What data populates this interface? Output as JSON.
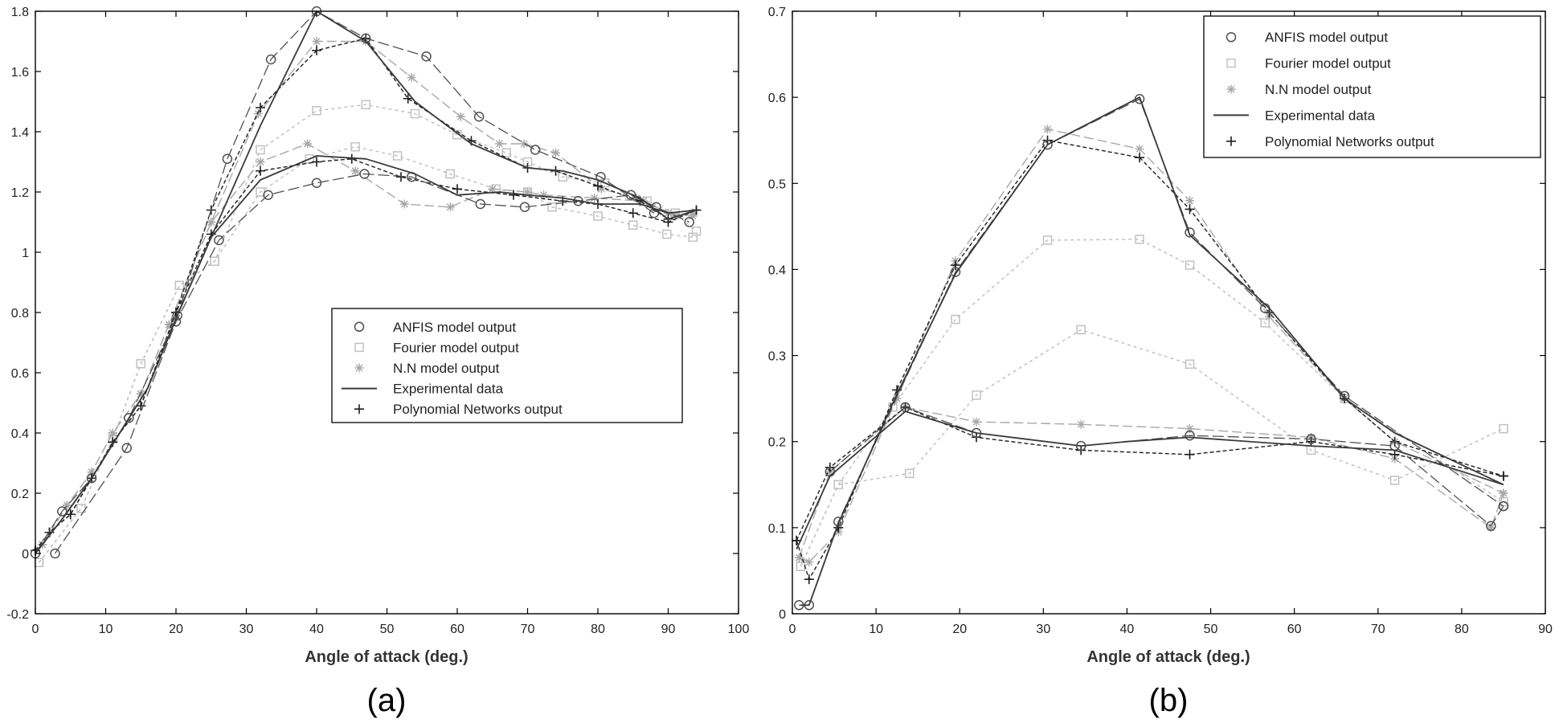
{
  "colors": {
    "experimental": "#3a3a3a",
    "polynomial": "#1e1e1e",
    "anfis": "#505050",
    "fourier": "#c2c2c2",
    "nn": "#a8a8a8",
    "axis": "#000000"
  },
  "chart_data": [
    {
      "type": "line",
      "panel_label": "(a)",
      "xlabel": "Angle of attack (deg.)",
      "ylabel": "",
      "xlim": [
        0,
        100
      ],
      "ylim": [
        -0.2,
        1.8
      ],
      "xticks": [
        0,
        10,
        20,
        30,
        40,
        50,
        60,
        70,
        80,
        90,
        100
      ],
      "yticks": [
        -0.2,
        0,
        0.2,
        0.4,
        0.6,
        0.8,
        1,
        1.2,
        1.4,
        1.6,
        1.8
      ],
      "ytick_labels": [
        "-0.2",
        "0",
        "0.2",
        "0.4",
        "0.6",
        "0.8",
        "1",
        "1.2",
        "1.4",
        "1.6",
        "1.8"
      ],
      "legend": {
        "position": "center-right",
        "entries": [
          "ANFIS model output",
          "Fourier model output",
          "N.N model output",
          "Experimental data",
          "Polynomial Networks output"
        ]
      },
      "series": [
        {
          "name": "Experimental data (upper)",
          "kind": "experimental",
          "x": [
            0,
            4,
            8,
            12,
            16,
            20,
            25,
            32,
            40,
            47,
            54,
            62,
            70,
            75,
            80,
            86,
            90,
            94
          ],
          "y": [
            0,
            0.12,
            0.25,
            0.4,
            0.55,
            0.78,
            1.05,
            1.42,
            1.8,
            1.7,
            1.5,
            1.36,
            1.28,
            1.27,
            1.24,
            1.18,
            1.11,
            1.14
          ]
        },
        {
          "name": "Experimental data (lower)",
          "kind": "experimental",
          "x": [
            0,
            4,
            8,
            12,
            16,
            20,
            25,
            32,
            40,
            47,
            54,
            60,
            66,
            70,
            75,
            80,
            86,
            90,
            94
          ],
          "y": [
            0,
            0.12,
            0.25,
            0.4,
            0.55,
            0.78,
            1.05,
            1.24,
            1.32,
            1.31,
            1.26,
            1.19,
            1.2,
            1.19,
            1.18,
            1.16,
            1.16,
            1.13,
            1.14
          ]
        },
        {
          "name": "Polynomial Networks output (upper)",
          "kind": "polynomial",
          "x": [
            0,
            2,
            5,
            8,
            11,
            15,
            20,
            25,
            32,
            40,
            47,
            53,
            62,
            70,
            74,
            80,
            86,
            90,
            94
          ],
          "y": [
            0.01,
            0.07,
            0.13,
            0.25,
            0.37,
            0.49,
            0.8,
            1.14,
            1.48,
            1.67,
            1.71,
            1.51,
            1.37,
            1.28,
            1.27,
            1.22,
            1.17,
            1.11,
            1.14
          ]
        },
        {
          "name": "Polynomial Networks output (lower)",
          "kind": "polynomial",
          "x": [
            0,
            2,
            5,
            8,
            11,
            15,
            20,
            25,
            32,
            40,
            45,
            52,
            60,
            68,
            75,
            80,
            85,
            90,
            94
          ],
          "y": [
            0.01,
            0.07,
            0.13,
            0.25,
            0.37,
            0.49,
            0.8,
            1.06,
            1.27,
            1.3,
            1.31,
            1.25,
            1.21,
            1.19,
            1.17,
            1.16,
            1.13,
            1.1,
            1.14
          ]
        },
        {
          "name": "ANFIS model output (upper)",
          "kind": "anfis",
          "x": [
            0,
            3.8,
            8,
            13.3,
            20.2,
            27.3,
            33.5,
            40,
            47,
            55.6,
            63.1,
            71.1,
            80.4,
            88
          ],
          "y": [
            0,
            0.14,
            0.25,
            0.45,
            0.79,
            1.31,
            1.64,
            1.8,
            1.71,
            1.65,
            1.45,
            1.34,
            1.25,
            1.13
          ]
        },
        {
          "name": "ANFIS model output (lower)",
          "kind": "anfis",
          "x": [
            2.8,
            13,
            20,
            26.1,
            33.1,
            40,
            46.8,
            53.5,
            63.3,
            69.6,
            77.2,
            84.7,
            88.3,
            93
          ],
          "y": [
            0,
            0.35,
            0.77,
            1.04,
            1.19,
            1.23,
            1.26,
            1.25,
            1.16,
            1.15,
            1.17,
            1.19,
            1.15,
            1.1
          ]
        },
        {
          "name": "Fourier model output (upper)",
          "kind": "fourier",
          "x": [
            0.5,
            6.5,
            11,
            15,
            20.5,
            25.5,
            32,
            40,
            47,
            54,
            60,
            67,
            70,
            75,
            81,
            87,
            91,
            94
          ],
          "y": [
            -0.03,
            0.15,
            0.38,
            0.63,
            0.89,
            0.97,
            1.34,
            1.47,
            1.49,
            1.46,
            1.39,
            1.33,
            1.3,
            1.25,
            1.23,
            1.17,
            1.13,
            1.07
          ]
        },
        {
          "name": "Fourier model output (lower)",
          "kind": "fourier",
          "x": [
            0.5,
            6.5,
            11,
            15,
            20.5,
            25.5,
            32,
            39,
            45.5,
            51.5,
            59,
            65.5,
            70,
            73.5,
            80,
            85,
            89.8,
            93.5
          ],
          "y": [
            -0.03,
            0.15,
            0.38,
            0.63,
            0.89,
            0.97,
            1.2,
            1.31,
            1.35,
            1.32,
            1.26,
            1.21,
            1.2,
            1.15,
            1.12,
            1.09,
            1.06,
            1.05
          ]
        },
        {
          "name": "N.N model output (upper)",
          "kind": "nn",
          "x": [
            1,
            4.5,
            8,
            11,
            15,
            19,
            25,
            31.7,
            40,
            47,
            53.5,
            60.5,
            66,
            69.5,
            74,
            80.5,
            85.5,
            90,
            93.5
          ],
          "y": [
            0.03,
            0.16,
            0.27,
            0.4,
            0.53,
            0.76,
            1.1,
            1.46,
            1.7,
            1.7,
            1.58,
            1.45,
            1.36,
            1.36,
            1.33,
            1.21,
            1.18,
            1.13,
            1.12
          ]
        },
        {
          "name": "N.N model output (lower)",
          "kind": "nn",
          "x": [
            1,
            4.5,
            8,
            11,
            15,
            19,
            25,
            32,
            38.7,
            45.5,
            52.5,
            59,
            65,
            70,
            72.3,
            79.5,
            86.5,
            91,
            93.5
          ],
          "y": [
            0.03,
            0.16,
            0.27,
            0.4,
            0.53,
            0.76,
            1.1,
            1.3,
            1.36,
            1.27,
            1.16,
            1.15,
            1.21,
            1.2,
            1.19,
            1.18,
            1.17,
            1.12,
            1.13
          ]
        }
      ]
    },
    {
      "type": "line",
      "panel_label": "(b)",
      "xlabel": "Angle of attack (deg.)",
      "ylabel": "",
      "xlim": [
        0,
        90
      ],
      "ylim": [
        0,
        0.7
      ],
      "xticks": [
        0,
        10,
        20,
        30,
        40,
        50,
        60,
        70,
        80,
        90
      ],
      "yticks": [
        0,
        0.1,
        0.2,
        0.3,
        0.4,
        0.5,
        0.6,
        0.7
      ],
      "ytick_labels": [
        "0",
        "0.1",
        "0.2",
        "0.3",
        "0.4",
        "0.5",
        "0.6",
        "0.7"
      ],
      "legend": {
        "position": "top-right",
        "entries": [
          "ANFIS model output",
          "Fourier model output",
          "N.N model output",
          "Experimental data",
          "Polynomial Networks output"
        ]
      },
      "series": [
        {
          "name": "Experimental data (upper)",
          "kind": "experimental",
          "x": [
            1,
            2,
            5.5,
            12.5,
            19.5,
            30.5,
            41.5,
            47.5,
            57,
            66,
            72,
            85
          ],
          "y": [
            0.01,
            0.01,
            0.105,
            0.255,
            0.395,
            0.545,
            0.6,
            0.44,
            0.355,
            0.25,
            0.21,
            0.15
          ]
        },
        {
          "name": "Experimental data (lower)",
          "kind": "experimental",
          "x": [
            0.5,
            4.5,
            13.5,
            22,
            34.5,
            40,
            47.5,
            62,
            72,
            85
          ],
          "y": [
            0.075,
            0.16,
            0.235,
            0.21,
            0.195,
            0.2,
            0.205,
            0.195,
            0.19,
            0.15
          ]
        },
        {
          "name": "Polynomial Networks output (upper)",
          "kind": "polynomial",
          "x": [
            0.5,
            2,
            5.5,
            12.5,
            19.5,
            30.5,
            41.5,
            47.5,
            57,
            66,
            72,
            85
          ],
          "y": [
            0.085,
            0.04,
            0.1,
            0.26,
            0.405,
            0.55,
            0.53,
            0.47,
            0.35,
            0.25,
            0.2,
            0.16
          ]
        },
        {
          "name": "Polynomial Networks output (lower)",
          "kind": "polynomial",
          "x": [
            0.5,
            4.5,
            13.5,
            22,
            34.5,
            47.5,
            62,
            72,
            85
          ],
          "y": [
            0.085,
            0.17,
            0.24,
            0.205,
            0.19,
            0.185,
            0.2,
            0.185,
            0.16
          ]
        },
        {
          "name": "ANFIS model output (upper)",
          "kind": "anfis",
          "x": [
            0.8,
            2,
            5.5,
            19.5,
            30.5,
            41.5,
            47.5,
            56.5,
            66,
            85
          ],
          "y": [
            0.01,
            0.01,
            0.107,
            0.397,
            0.545,
            0.598,
            0.443,
            0.355,
            0.253,
            0.125
          ]
        },
        {
          "name": "ANFIS model output (lower)",
          "kind": "anfis",
          "x": [
            4.5,
            13.5,
            22,
            34.5,
            47.5,
            62,
            72,
            83.5,
            85
          ],
          "y": [
            0.165,
            0.24,
            0.21,
            0.195,
            0.207,
            0.203,
            0.195,
            0.102,
            0.125
          ]
        },
        {
          "name": "Fourier model output (upper)",
          "kind": "fourier",
          "x": [
            1,
            5.5,
            12,
            19.5,
            30.5,
            41.5,
            47.5,
            56.5,
            66,
            85
          ],
          "y": [
            0.055,
            0.15,
            0.24,
            0.342,
            0.434,
            0.435,
            0.405,
            0.338,
            0.25,
            0.13
          ]
        },
        {
          "name": "Fourier model output (lower)",
          "kind": "fourier",
          "x": [
            1,
            5.5,
            14,
            22,
            34.5,
            47.5,
            62,
            72,
            85
          ],
          "y": [
            0.055,
            0.15,
            0.163,
            0.254,
            0.33,
            0.29,
            0.19,
            0.155,
            0.215
          ]
        },
        {
          "name": "N.N model output (upper)",
          "kind": "nn",
          "x": [
            0.8,
            2,
            5.5,
            12.5,
            19.5,
            30.5,
            41.5,
            47.5,
            57,
            66,
            72,
            85
          ],
          "y": [
            0.065,
            0.06,
            0.095,
            0.25,
            0.41,
            0.563,
            0.54,
            0.48,
            0.345,
            0.25,
            0.2,
            0.14
          ]
        },
        {
          "name": "N.N model output (lower)",
          "kind": "nn",
          "x": [
            0.8,
            4.5,
            13.5,
            22,
            34.5,
            47.5,
            62,
            72,
            83.5,
            85
          ],
          "y": [
            0.065,
            0.165,
            0.24,
            0.223,
            0.22,
            0.215,
            0.205,
            0.18,
            0.1,
            0.14
          ]
        }
      ]
    }
  ]
}
